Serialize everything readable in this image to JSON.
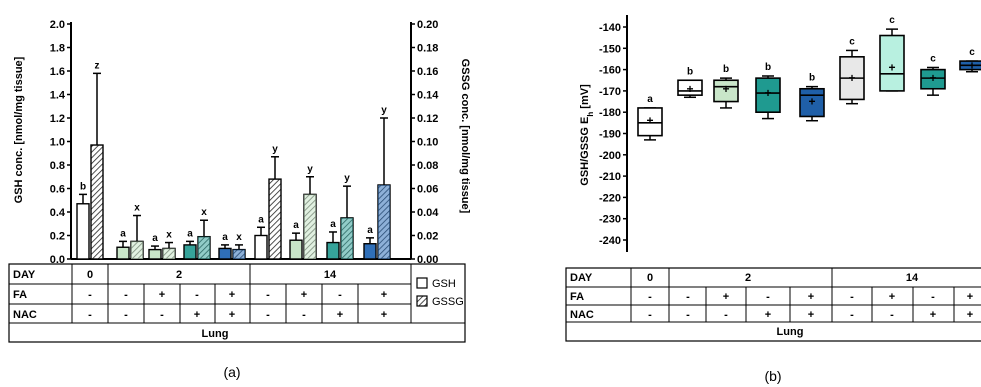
{
  "panels": {
    "a": {
      "caption": "(a)"
    },
    "b": {
      "caption": "(b)"
    }
  },
  "table": {
    "row_labels": [
      "DAY",
      "FA",
      "NAC"
    ],
    "tissue": "Lung",
    "day_values": [
      "0",
      "2",
      "14"
    ],
    "fa_a": [
      "-",
      "-",
      "+",
      "-",
      "+",
      "-",
      "+",
      "-",
      "+"
    ],
    "nac_a": [
      "-",
      "-",
      "-",
      "+",
      "+",
      "-",
      "-",
      "+",
      "+"
    ],
    "fa_b": [
      "-",
      "-",
      "+",
      "-",
      "+",
      "-",
      "+",
      "-",
      "+"
    ],
    "nac_b": [
      "-",
      "-",
      "-",
      "+",
      "+",
      "-",
      "-",
      "+",
      "+"
    ]
  },
  "legend": {
    "gsh": "GSH",
    "gssg": "GSSG"
  },
  "colors": {
    "open": "#ffffff",
    "green_light": "#c9e6c9",
    "teal": "#36a39a",
    "blue": "#2f6fb8",
    "gray": "#e8e8e8",
    "mint": "#b8f0e0",
    "teal_box": "#1f9a90",
    "navy": "#1f5fa8"
  },
  "chart_data": [
    {
      "type": "bar",
      "panel": "a",
      "ylabel": "GSH conc. [nmol/mg tissue]",
      "y2label": "GSSG conc. [nmol/mg tissue]",
      "ylim": [
        0,
        2.0
      ],
      "yticks": [
        "0.0",
        "0.2",
        "0.4",
        "0.6",
        "0.8",
        "1.0",
        "1.2",
        "1.4",
        "1.6",
        "1.8",
        "2.0"
      ],
      "y2lim": [
        0,
        0.2
      ],
      "y2ticks": [
        "0.00",
        "0.02",
        "0.04",
        "0.06",
        "0.08",
        "0.10",
        "0.12",
        "0.14",
        "0.16",
        "0.18",
        "0.20"
      ],
      "groups": [
        {
          "gsh": 0.47,
          "gsh_err": 0.08,
          "gssg": 0.097,
          "gssg_err": 0.061,
          "gsh_letter": "b",
          "gssg_letter": "z",
          "color": "open"
        },
        {
          "gsh": 0.1,
          "gsh_err": 0.05,
          "gssg": 0.015,
          "gssg_err": 0.022,
          "gsh_letter": "a",
          "gssg_letter": "x",
          "color": "green_light"
        },
        {
          "gsh": 0.08,
          "gsh_err": 0.03,
          "gssg": 0.009,
          "gssg_err": 0.005,
          "gsh_letter": "a",
          "gssg_letter": "x",
          "color": "green_light"
        },
        {
          "gsh": 0.12,
          "gsh_err": 0.03,
          "gssg": 0.019,
          "gssg_err": 0.014,
          "gsh_letter": "a",
          "gssg_letter": "x",
          "color": "teal"
        },
        {
          "gsh": 0.09,
          "gsh_err": 0.03,
          "gssg": 0.008,
          "gssg_err": 0.004,
          "gsh_letter": "a",
          "gssg_letter": "x",
          "color": "blue"
        },
        {
          "gsh": 0.2,
          "gsh_err": 0.07,
          "gssg": 0.068,
          "gssg_err": 0.019,
          "gsh_letter": "a",
          "gssg_letter": "y",
          "color": "open"
        },
        {
          "gsh": 0.16,
          "gsh_err": 0.06,
          "gssg": 0.055,
          "gssg_err": 0.015,
          "gsh_letter": "a",
          "gssg_letter": "y",
          "color": "green_light"
        },
        {
          "gsh": 0.14,
          "gsh_err": 0.09,
          "gssg": 0.035,
          "gssg_err": 0.027,
          "gsh_letter": "a",
          "gssg_letter": "y",
          "color": "teal"
        },
        {
          "gsh": 0.13,
          "gsh_err": 0.05,
          "gssg": 0.063,
          "gssg_err": 0.057,
          "gsh_letter": "a",
          "gssg_letter": "y",
          "color": "blue"
        }
      ]
    },
    {
      "type": "box",
      "panel": "b",
      "ylabel": "GSH/GSSG E_h [mV]",
      "ylim": [
        -245,
        -135
      ],
      "yticks": [
        -140,
        -150,
        -160,
        -170,
        -180,
        -190,
        -200,
        -210,
        -220,
        -230,
        -240
      ],
      "boxes": [
        {
          "min": -193,
          "q1": -191,
          "median": -185,
          "q3": -178,
          "max": -178,
          "mean": -184,
          "letter": "a",
          "color": "open"
        },
        {
          "min": -173,
          "q1": -172,
          "median": -170,
          "q3": -165,
          "max": -165,
          "mean": -169,
          "letter": "b",
          "color": "open"
        },
        {
          "min": -178,
          "q1": -175,
          "median": -168,
          "q3": -165,
          "max": -164,
          "mean": -169,
          "letter": "b",
          "color": "green_light"
        },
        {
          "min": -183,
          "q1": -180,
          "median": -171,
          "q3": -164,
          "max": -163,
          "mean": -171,
          "letter": "b",
          "color": "teal_box"
        },
        {
          "min": -184,
          "q1": -182,
          "median": -172,
          "q3": -169,
          "max": -168,
          "mean": -175,
          "letter": "b",
          "color": "navy"
        },
        {
          "min": -176,
          "q1": -174,
          "median": -164,
          "q3": -154,
          "max": -151,
          "mean": -164,
          "letter": "c",
          "color": "gray"
        },
        {
          "min": -170,
          "q1": -170,
          "median": -162,
          "q3": -144,
          "max": -141,
          "mean": -159,
          "letter": "c",
          "color": "mint"
        },
        {
          "min": -172,
          "q1": -169,
          "median": -164,
          "q3": -160,
          "max": -159,
          "mean": -164,
          "letter": "c",
          "color": "teal_box"
        },
        {
          "min": -161,
          "q1": -160,
          "median": -158,
          "q3": -156,
          "max": -156,
          "mean": -158,
          "letter": "c",
          "color": "navy"
        }
      ]
    }
  ]
}
